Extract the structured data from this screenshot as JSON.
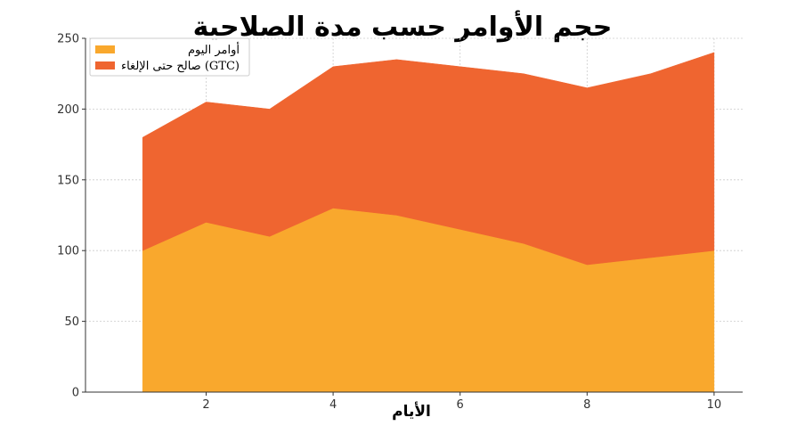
{
  "chart_data": {
    "type": "area",
    "stacked": true,
    "title": "حجم الأوامر حسب مدة الصلاحية",
    "xlabel": "الأيام",
    "ylabel": "",
    "x": [
      1,
      2,
      3,
      4,
      5,
      6,
      7,
      8,
      9,
      10
    ],
    "xticks": [
      2,
      4,
      6,
      8,
      10
    ],
    "yticks": [
      0,
      50,
      100,
      150,
      200,
      250
    ],
    "xlim": [
      0.1,
      10.45
    ],
    "ylim": [
      0,
      250
    ],
    "grid": true,
    "legend_position": "top-left",
    "series": [
      {
        "name": "أوامر اليوم",
        "color": "#f9a82d",
        "values": [
          100,
          120,
          110,
          130,
          125,
          115,
          105,
          90,
          95,
          100
        ]
      },
      {
        "name": "صالح حتى الإلغاء (GTC)",
        "color": "#ef6530",
        "values": [
          80,
          85,
          90,
          100,
          110,
          115,
          120,
          125,
          130,
          140
        ]
      }
    ]
  }
}
